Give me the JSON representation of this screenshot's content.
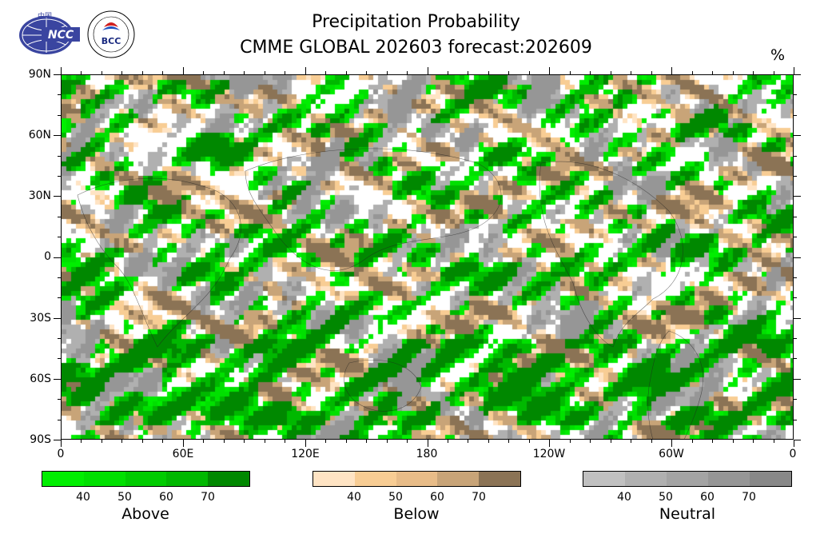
{
  "title": {
    "line1": "Precipitation Probability",
    "line2": "CMME GLOBAL 202603 forecast:202609",
    "unit": "%"
  },
  "logos": [
    {
      "name": "NCC",
      "text": "NCC",
      "small_text": "中国"
    },
    {
      "name": "BCC",
      "text": "BCC"
    }
  ],
  "axes": {
    "y_labels": [
      "90N",
      "60N",
      "30N",
      "0",
      "30S",
      "60S",
      "90S"
    ],
    "x_labels": [
      "0",
      "60E",
      "120E",
      "180",
      "120W",
      "60W",
      "0"
    ]
  },
  "legends": [
    {
      "label": "Above",
      "ticks": [
        "40",
        "50",
        "60",
        "70"
      ],
      "colors": [
        "#00ee00",
        "#00e000",
        "#00cc00",
        "#00b800",
        "#008800"
      ]
    },
    {
      "label": "Below",
      "ticks": [
        "40",
        "50",
        "60",
        "70"
      ],
      "colors": [
        "#ffe4c4",
        "#f8cd94",
        "#e8bc88",
        "#c8a478",
        "#8b7355"
      ]
    },
    {
      "label": "Neutral",
      "ticks": [
        "40",
        "50",
        "60",
        "70"
      ],
      "colors": [
        "#c0c0c0",
        "#b0b0b0",
        "#a4a4a4",
        "#969696",
        "#888888"
      ]
    }
  ]
}
